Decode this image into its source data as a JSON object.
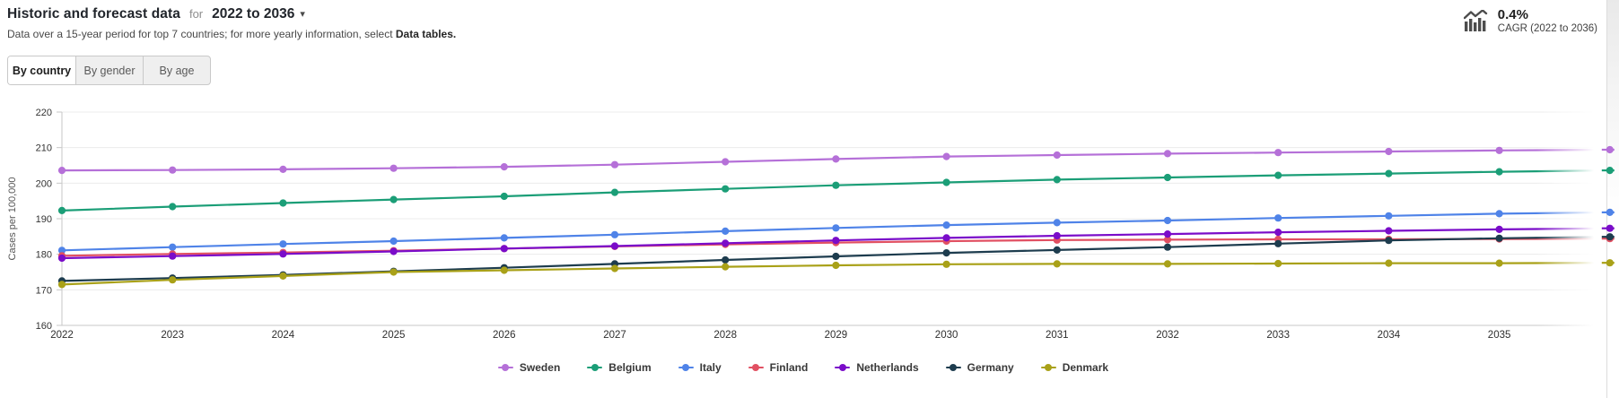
{
  "header": {
    "title": "Historic and forecast data",
    "for_label": "for",
    "range_value": "2022 to 2036",
    "subtitle_prefix": "Data over a 15-year period for top 7 countries; for more yearly information, select ",
    "subtitle_link": "Data tables.",
    "cagr_value": "0.4%",
    "cagr_label": "CAGR (2022 to 2036)"
  },
  "tabs": [
    {
      "label": "By country",
      "active": true
    },
    {
      "label": "By gender",
      "active": false
    },
    {
      "label": "By age",
      "active": false
    }
  ],
  "chart_data": {
    "type": "line",
    "title": "",
    "xlabel": "",
    "ylabel": "Cases per 100,000",
    "ylim": [
      160,
      220
    ],
    "yticks": [
      160,
      170,
      180,
      190,
      200,
      210,
      220
    ],
    "grid": true,
    "legend_position": "bottom",
    "x": [
      2022,
      2023,
      2024,
      2025,
      2026,
      2027,
      2028,
      2029,
      2030,
      2031,
      2032,
      2033,
      2034,
      2035,
      2036
    ],
    "x_tick_labels": [
      "2022",
      "2023",
      "2024",
      "2025",
      "2026",
      "2027",
      "2028",
      "2029",
      "2030",
      "2031",
      "2032",
      "2033",
      "2034",
      "2035"
    ],
    "series": [
      {
        "name": "Sweden",
        "color": "#b570d8",
        "values": [
          203.6,
          203.7,
          203.9,
          204.2,
          204.6,
          205.2,
          206.0,
          206.8,
          207.5,
          207.9,
          208.3,
          208.6,
          208.9,
          209.2,
          209.4
        ]
      },
      {
        "name": "Belgium",
        "color": "#1b9e77",
        "values": [
          192.3,
          193.4,
          194.4,
          195.4,
          196.3,
          197.4,
          198.4,
          199.4,
          200.2,
          201.0,
          201.6,
          202.2,
          202.7,
          203.2,
          203.6
        ]
      },
      {
        "name": "Italy",
        "color": "#4f83e8",
        "values": [
          181.1,
          182.0,
          182.9,
          183.7,
          184.6,
          185.5,
          186.5,
          187.4,
          188.2,
          188.9,
          189.5,
          190.2,
          190.8,
          191.4,
          191.8
        ]
      },
      {
        "name": "Finland",
        "color": "#e15062",
        "values": [
          179.6,
          180.1,
          180.5,
          181.0,
          181.6,
          182.2,
          182.8,
          183.3,
          183.7,
          184.0,
          184.1,
          184.2,
          184.2,
          184.3,
          184.4
        ]
      },
      {
        "name": "Netherlands",
        "color": "#7a0cc9",
        "values": [
          178.9,
          179.5,
          180.1,
          180.8,
          181.6,
          182.3,
          183.1,
          183.9,
          184.6,
          185.2,
          185.7,
          186.2,
          186.6,
          187.0,
          187.3
        ]
      },
      {
        "name": "Germany",
        "color": "#1d3c4e",
        "values": [
          172.5,
          173.3,
          174.2,
          175.2,
          176.2,
          177.3,
          178.4,
          179.4,
          180.4,
          181.2,
          182.0,
          183.0,
          183.9,
          184.5,
          184.9
        ]
      },
      {
        "name": "Denmark",
        "color": "#a9a118",
        "values": [
          171.5,
          172.8,
          173.9,
          175.0,
          175.5,
          176.0,
          176.5,
          176.9,
          177.2,
          177.3,
          177.3,
          177.4,
          177.5,
          177.5,
          177.6
        ]
      }
    ]
  }
}
